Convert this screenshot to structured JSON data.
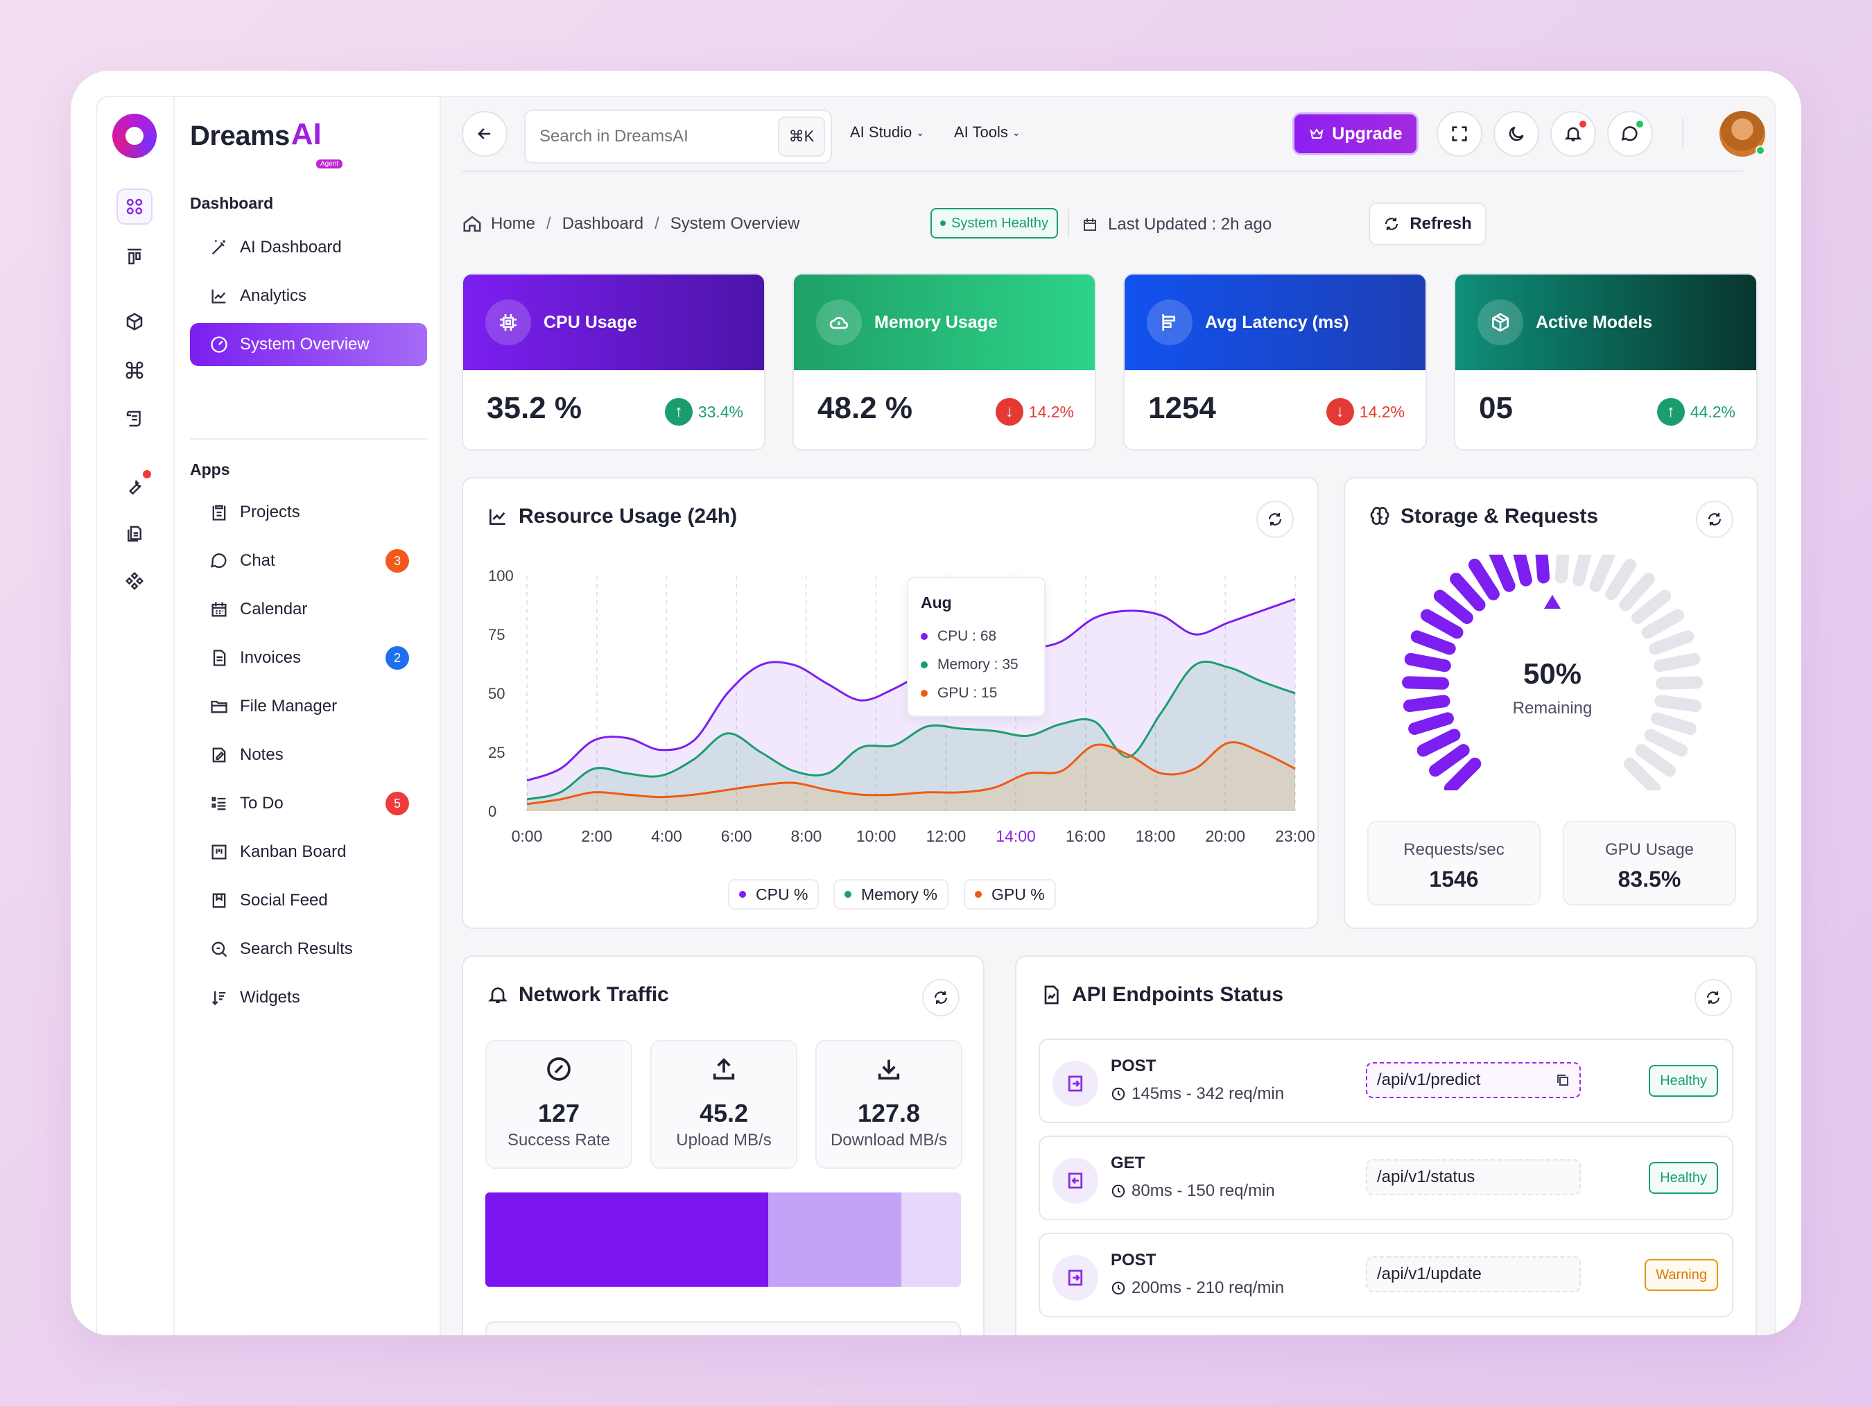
{
  "colors": {
    "accent": "#8a2be2",
    "cpu": "#7c1ff0",
    "memory": "#1b9e6e",
    "gpu": "#ef5a12",
    "healthy": "#1b9e6e",
    "warning": "#e89215",
    "danger": "#e53935"
  },
  "brand": {
    "name_dark": "Dreams",
    "name_accent": "AI",
    "tag": "Agent"
  },
  "rail_icons": [
    "apps-grid-icon",
    "layout-icon",
    "cube-icon",
    "command-icon",
    "scroll-icon",
    "wrench-icon",
    "files-icon",
    "components-icon"
  ],
  "sidebar": {
    "dashboard_title": "Dashboard",
    "dashboard_items": [
      {
        "label": "AI Dashboard",
        "icon": "magic-wand-icon"
      },
      {
        "label": "Analytics",
        "icon": "chart-line-icon"
      },
      {
        "label": "System Overview",
        "icon": "gauge-icon",
        "active": true
      }
    ],
    "apps_title": "Apps",
    "apps_items": [
      {
        "label": "Projects",
        "icon": "clipboard-icon"
      },
      {
        "label": "Chat",
        "icon": "chat-icon",
        "badge": "3"
      },
      {
        "label": "Calendar",
        "icon": "calendar-icon"
      },
      {
        "label": "Invoices",
        "icon": "invoice-icon",
        "badge": "2"
      },
      {
        "label": "File Manager",
        "icon": "folder-icon"
      },
      {
        "label": "Notes",
        "icon": "note-icon"
      },
      {
        "label": "To Do",
        "icon": "checklist-icon",
        "badge": "5"
      },
      {
        "label": "Kanban Board",
        "icon": "kanban-icon"
      },
      {
        "label": "Social Feed",
        "icon": "bookmark-icon"
      },
      {
        "label": "Search Results",
        "icon": "search-icon"
      },
      {
        "label": "Widgets",
        "icon": "sort-icon"
      }
    ]
  },
  "topbar": {
    "search_placeholder": "Search in DreamsAI",
    "search_shortcut": "⌘K",
    "menu_ai_studio": "AI Studio",
    "menu_ai_tools": "AI Tools",
    "upgrade_label": "Upgrade"
  },
  "breadcrumb": {
    "home": "Home",
    "dashboard": "Dashboard",
    "current": "System Overview"
  },
  "status_pill": "System Healthy",
  "last_updated": "Last Updated : 2h ago",
  "refresh_label": "Refresh",
  "stats": [
    {
      "title": "CPU Usage",
      "value": "35.2 %",
      "change": "33.4%",
      "trend": "up",
      "icon": "chip-icon"
    },
    {
      "title": "Memory Usage",
      "value": "48.2 %",
      "change": "14.2%",
      "trend": "down",
      "icon": "cloud-icon"
    },
    {
      "title": "Avg Latency (ms)",
      "value": "1254",
      "change": "14.2%",
      "trend": "down",
      "icon": "align-icon"
    },
    {
      "title": "Active Models",
      "value": "05",
      "change": "44.2%",
      "trend": "up",
      "icon": "box-icon"
    }
  ],
  "resource": {
    "title": "Resource Usage (24h)",
    "tooltip": {
      "title": "Aug",
      "cpu": "CPU : 68",
      "memory": "Memory : 35",
      "gpu": "GPU : 15"
    },
    "legend": {
      "cpu": "CPU %",
      "memory": "Memory %",
      "gpu": "GPU %"
    }
  },
  "chart_data": {
    "type": "area",
    "title": "Resource Usage (24h)",
    "x_ticks": [
      "0:00",
      "2:00",
      "4:00",
      "6:00",
      "8:00",
      "10:00",
      "12:00",
      "14:00",
      "16:00",
      "18:00",
      "20:00",
      "23:00"
    ],
    "highlight_tick": "14:00",
    "y_ticks": [
      "0",
      "25",
      "50",
      "75",
      "100"
    ],
    "ylim": [
      0,
      100
    ],
    "x": [
      0,
      1,
      2,
      3,
      4,
      5,
      6,
      7,
      8,
      9,
      10,
      11,
      12,
      13,
      14,
      15,
      16,
      17,
      18,
      19,
      20,
      21,
      22,
      23
    ],
    "series": [
      {
        "name": "CPU %",
        "values": [
          13,
          18,
          30,
          31,
          26,
          30,
          50,
          62,
          62,
          54,
          47,
          52,
          60,
          68,
          60,
          68,
          72,
          82,
          85,
          83,
          75,
          80,
          85,
          90
        ]
      },
      {
        "name": "Memory %",
        "values": [
          5,
          8,
          18,
          16,
          15,
          22,
          33,
          25,
          17,
          16,
          27,
          28,
          36,
          35,
          34,
          32,
          37,
          38,
          23,
          42,
          62,
          61,
          55,
          50
        ]
      },
      {
        "name": "GPU %",
        "values": [
          3,
          5,
          8,
          7,
          6,
          7,
          9,
          11,
          12,
          9,
          7,
          7,
          8,
          8,
          10,
          16,
          17,
          28,
          24,
          16,
          18,
          29,
          25,
          18
        ]
      }
    ]
  },
  "storage": {
    "title": "Storage & Requests",
    "percent_label": "50%",
    "percent_value": 50,
    "remaining_label": "Remaining",
    "requests_label": "Requests/sec",
    "requests_value": "1546",
    "gpu_label": "GPU Usage",
    "gpu_value": "83.5%"
  },
  "network": {
    "title": "Network Traffic",
    "boxes": [
      {
        "value": "127",
        "label": "Success Rate",
        "icon": "percent-badge-icon"
      },
      {
        "value": "45.2",
        "label": "Upload MB/s",
        "icon": "upload-icon"
      },
      {
        "value": "127.8",
        "label": "Download MB/s",
        "icon": "download-icon"
      }
    ],
    "bar_segments": [
      0.595,
      0.28,
      0.125
    ]
  },
  "endpoints": {
    "title": "API Endpoints Status",
    "rows": [
      {
        "method": "POST",
        "meta": "145ms - 342 req/min",
        "path": "/api/v1/predict",
        "status": "Healthy",
        "kind": "ok",
        "icon": "login-icon",
        "selected": true
      },
      {
        "method": "GET",
        "meta": "80ms - 150 req/min",
        "path": "/api/v1/status",
        "status": "Healthy",
        "kind": "ok",
        "icon": "logout-icon"
      },
      {
        "method": "POST",
        "meta": "200ms - 210 req/min",
        "path": "/api/v1/update",
        "status": "Warning",
        "kind": "warn",
        "icon": "login-icon"
      }
    ]
  }
}
